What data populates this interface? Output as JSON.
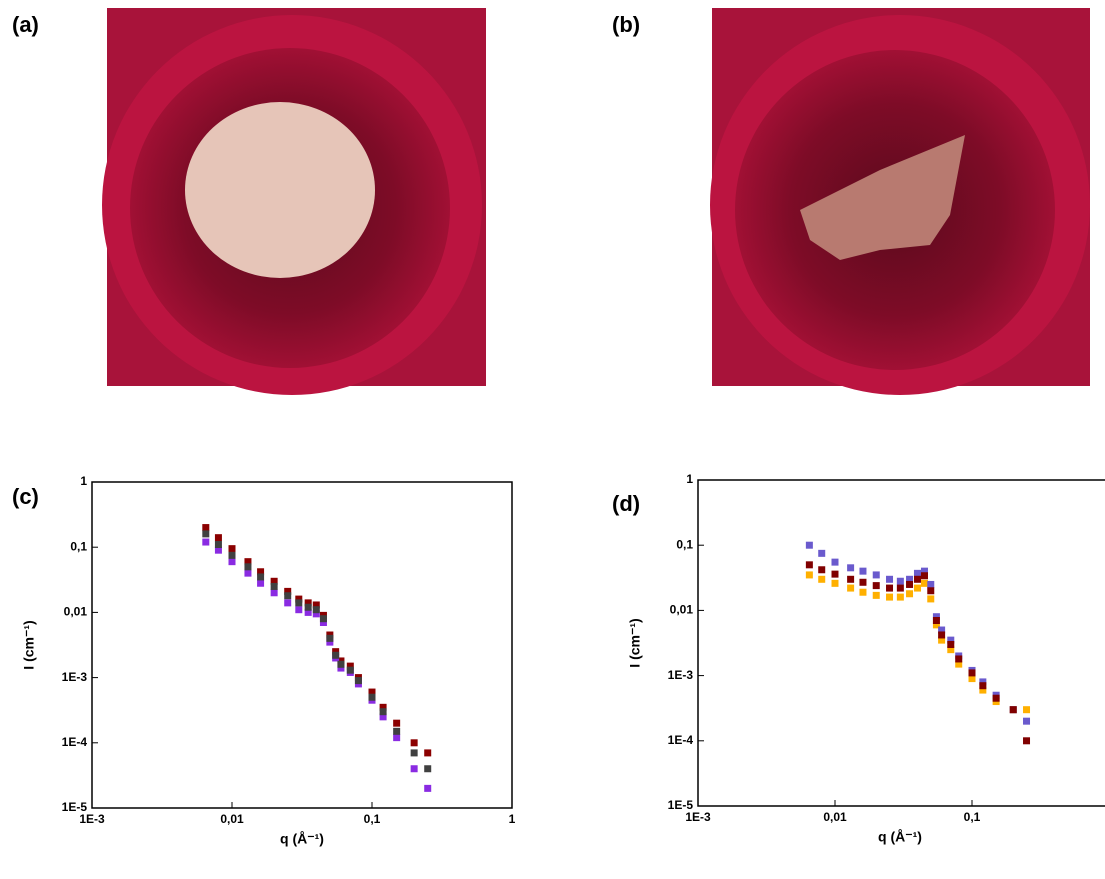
{
  "panels": [
    {
      "label": "(a)"
    },
    {
      "label": "(b)"
    }
  ],
  "chart_data": [
    {
      "type": "scatter",
      "label": "(c)",
      "x_label": "q (Å⁻¹)",
      "y_label": "I (cm⁻¹)",
      "log_x": true,
      "log_y": true,
      "xlim": [
        0.001,
        1
      ],
      "ylim": [
        1e-05,
        1
      ],
      "xticks": [
        {
          "value": 0.001,
          "label": "1E-3"
        },
        {
          "value": 0.01,
          "label": "0,01"
        },
        {
          "value": 0.1,
          "label": "0,1"
        },
        1
      ],
      "yticks": [
        {
          "value": 1e-05,
          "label": "1E-5"
        },
        {
          "value": 0.0001,
          "label": "1E-4"
        },
        {
          "value": 0.001,
          "label": "1E-3"
        },
        {
          "value": 0.01,
          "label": "0,01"
        },
        {
          "value": 0.1,
          "label": "0,1"
        },
        1
      ],
      "series": [
        {
          "color": "#8b0000",
          "x": [
            0.0065,
            0.008,
            0.01,
            0.013,
            0.016,
            0.02,
            0.025,
            0.03,
            0.035,
            0.04,
            0.045,
            0.05,
            0.055,
            0.06,
            0.07,
            0.08,
            0.1,
            0.12,
            0.15,
            0.2,
            0.25
          ],
          "values": [
            0.2,
            0.14,
            0.095,
            0.06,
            0.042,
            0.03,
            0.021,
            0.016,
            0.014,
            0.013,
            0.009,
            0.0045,
            0.0025,
            0.0018,
            0.0015,
            0.001,
            0.0006,
            0.00035,
            0.0002,
            0.0001,
            7e-05
          ]
        },
        {
          "color": "#8a2be2",
          "x": [
            0.0065,
            0.008,
            0.01,
            0.013,
            0.016,
            0.02,
            0.025,
            0.03,
            0.035,
            0.04,
            0.045,
            0.05,
            0.055,
            0.06,
            0.07,
            0.08,
            0.1,
            0.12,
            0.15,
            0.2,
            0.25
          ],
          "values": [
            0.12,
            0.09,
            0.06,
            0.04,
            0.028,
            0.02,
            0.014,
            0.011,
            0.01,
            0.0095,
            0.007,
            0.0035,
            0.002,
            0.0014,
            0.0012,
            0.0008,
            0.00045,
            0.00025,
            0.00012,
            4e-05,
            2e-05
          ]
        },
        {
          "color": "#404040",
          "x": [
            0.0065,
            0.008,
            0.01,
            0.013,
            0.016,
            0.02,
            0.025,
            0.03,
            0.035,
            0.04,
            0.045,
            0.05,
            0.055,
            0.06,
            0.07,
            0.08,
            0.1,
            0.12,
            0.15,
            0.2,
            0.25
          ],
          "values": [
            0.16,
            0.11,
            0.075,
            0.05,
            0.035,
            0.025,
            0.018,
            0.014,
            0.012,
            0.011,
            0.008,
            0.004,
            0.0022,
            0.0016,
            0.0013,
            0.0009,
            0.0005,
            0.0003,
            0.00015,
            7e-05,
            4e-05
          ]
        }
      ]
    },
    {
      "type": "scatter",
      "label": "(d)",
      "x_label": "q (Å⁻¹)",
      "y_label": "I (cm⁻¹)",
      "log_x": true,
      "log_y": true,
      "xlim": [
        0.001,
        1
      ],
      "ylim": [
        1e-05,
        1
      ],
      "xticks": [
        {
          "value": 0.001,
          "label": "1E-3"
        },
        {
          "value": 0.01,
          "label": "0,01"
        },
        {
          "value": 0.1,
          "label": "0,1"
        }
      ],
      "yticks": [
        {
          "value": 1e-05,
          "label": "1E-5"
        },
        {
          "value": 0.0001,
          "label": "1E-4"
        },
        {
          "value": 0.001,
          "label": "1E-3"
        },
        {
          "value": 0.01,
          "label": "0,01"
        },
        {
          "value": 0.1,
          "label": "0,1"
        },
        1
      ],
      "series": [
        {
          "color": "#ffb000",
          "x": [
            0.0065,
            0.008,
            0.01,
            0.013,
            0.016,
            0.02,
            0.025,
            0.03,
            0.035,
            0.04,
            0.045,
            0.05,
            0.055,
            0.06,
            0.07,
            0.08,
            0.1,
            0.12,
            0.15,
            0.2,
            0.25
          ],
          "values": [
            0.035,
            0.03,
            0.026,
            0.022,
            0.019,
            0.017,
            0.016,
            0.016,
            0.018,
            0.022,
            0.026,
            0.015,
            0.006,
            0.0035,
            0.0025,
            0.0015,
            0.0009,
            0.0006,
            0.0004,
            0.0003,
            0.0003
          ]
        },
        {
          "color": "#6a5acd",
          "x": [
            0.0065,
            0.008,
            0.01,
            0.013,
            0.016,
            0.02,
            0.025,
            0.03,
            0.035,
            0.04,
            0.045,
            0.05,
            0.055,
            0.06,
            0.07,
            0.08,
            0.1,
            0.12,
            0.15,
            0.2,
            0.25
          ],
          "values": [
            0.1,
            0.075,
            0.055,
            0.045,
            0.04,
            0.035,
            0.03,
            0.028,
            0.03,
            0.037,
            0.04,
            0.025,
            0.008,
            0.005,
            0.0035,
            0.002,
            0.0012,
            0.0008,
            0.0005,
            0.0003,
            0.0002
          ]
        },
        {
          "color": "#800000",
          "x": [
            0.0065,
            0.008,
            0.01,
            0.013,
            0.016,
            0.02,
            0.025,
            0.03,
            0.035,
            0.04,
            0.045,
            0.05,
            0.055,
            0.06,
            0.07,
            0.08,
            0.1,
            0.12,
            0.15,
            0.2,
            0.25
          ],
          "values": [
            0.05,
            0.042,
            0.036,
            0.03,
            0.027,
            0.024,
            0.022,
            0.022,
            0.025,
            0.03,
            0.034,
            0.02,
            0.007,
            0.0042,
            0.003,
            0.0018,
            0.0011,
            0.0007,
            0.00045,
            0.0003,
            0.0001
          ]
        }
      ]
    }
  ]
}
